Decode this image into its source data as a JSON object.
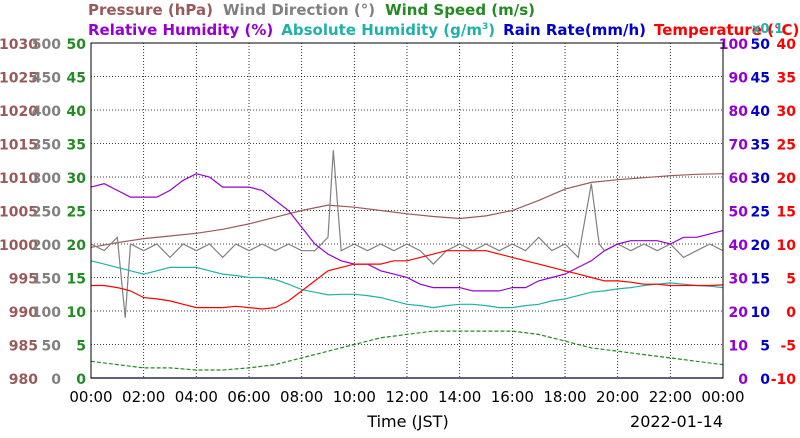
{
  "chart_data": {
    "type": "line",
    "date_label": "2022-01-14",
    "xlabel": "Time (JST)",
    "x_ticks": [
      "00:00",
      "02:00",
      "04:00",
      "06:00",
      "08:00",
      "10:00",
      "12:00",
      "14:00",
      "16:00",
      "18:00",
      "20:00",
      "22:00",
      "00:00"
    ],
    "legend_row1": [
      {
        "text": "Pressure (hPa)",
        "color": "#9a5a5a"
      },
      {
        "text": "Wind Direction (°)",
        "color": "#808080"
      },
      {
        "text": "Wind Speed (m/s)",
        "color": "#228b22"
      }
    ],
    "legend_row2": [
      {
        "text": "Relative Humidity (%)",
        "color": "#9400d3"
      },
      {
        "text": "Absolute Humidity (g/m",
        "sup": "3",
        "close": ")",
        "color": "#20b2aa"
      },
      {
        "text": "Rain Rate(mm/h)",
        "color": "#0000cd"
      },
      {
        "text": "Temperature (°C)",
        "color": "#ff0000"
      }
    ],
    "rain_scale_note": "x0.1",
    "axes": {
      "pressure": {
        "label_color": "#9a5a5a",
        "ticks": [
          "1030",
          "1025",
          "1020",
          "1015",
          "1010",
          "1005",
          "1000",
          "995",
          "990",
          "985",
          "980"
        ],
        "range": [
          980,
          1030
        ]
      },
      "wind_direction": {
        "label_color": "#808080",
        "ticks": [
          "500",
          "450",
          "400",
          "350",
          "300",
          "250",
          "200",
          "150",
          "100",
          "50",
          "0"
        ],
        "range": [
          0,
          500
        ]
      },
      "wind_speed": {
        "label_color": "#228b22",
        "ticks": [
          "50",
          "45",
          "40",
          "35",
          "30",
          "25",
          "20",
          "15",
          "10",
          "5",
          "0"
        ],
        "range": [
          0,
          50
        ]
      },
      "relative_humidity": {
        "label_color": "#9400d3",
        "ticks": [
          "100",
          "90",
          "80",
          "70",
          "60",
          "50",
          "40",
          "30",
          "20",
          "10",
          "0"
        ],
        "range": [
          0,
          100
        ]
      },
      "rain_rate": {
        "label_color": "#0000cd",
        "ticks": [
          "50",
          "45",
          "40",
          "35",
          "30",
          "25",
          "20",
          "15",
          "10",
          "5",
          "0"
        ],
        "range": [
          0,
          50
        ]
      },
      "temperature": {
        "label_color": "#ff0000",
        "ticks": [
          "40",
          "35",
          "30",
          "25",
          "20",
          "15",
          "10",
          "5",
          "0",
          "-5",
          "-10"
        ],
        "range": [
          -10,
          40
        ]
      }
    },
    "series": [
      {
        "name": "Pressure",
        "unit": "hPa",
        "color": "#9a5a5a",
        "axis": "pressure",
        "x": [
          0,
          1,
          2,
          3,
          4,
          5,
          6,
          7,
          8,
          9,
          10,
          11,
          12,
          13,
          14,
          15,
          16,
          17,
          18,
          19,
          20,
          21,
          22,
          23,
          24
        ],
        "y": [
          999.5,
          1000.2,
          1000.8,
          1001.2,
          1001.6,
          1002.2,
          1003,
          1004,
          1005,
          1005.8,
          1005.5,
          1005,
          1004.5,
          1004.1,
          1003.8,
          1004.2,
          1005,
          1006.5,
          1008.2,
          1009.2,
          1009.6,
          1009.9,
          1010.2,
          1010.4,
          1010.5
        ]
      },
      {
        "name": "Wind Direction",
        "unit": "°",
        "color": "#808080",
        "axis": "wind_direction",
        "x": [
          0,
          0.5,
          1,
          1.3,
          1.5,
          2,
          2.5,
          3,
          3.5,
          4,
          4.5,
          5,
          5.5,
          6,
          6.5,
          7,
          7.5,
          8,
          8.5,
          9,
          9.2,
          9.5,
          10,
          10.5,
          11,
          11.5,
          12,
          12.5,
          13,
          13.5,
          14,
          14.5,
          15,
          15.5,
          16,
          16.5,
          17,
          17.5,
          18,
          18.5,
          19,
          19.3,
          19.5,
          20,
          20.5,
          21,
          21.5,
          22,
          22.5,
          23,
          23.5,
          24
        ],
        "y": [
          200,
          190,
          210,
          90,
          200,
          190,
          200,
          180,
          200,
          190,
          200,
          180,
          200,
          190,
          200,
          190,
          200,
          190,
          190,
          210,
          340,
          190,
          200,
          190,
          200,
          190,
          200,
          190,
          170,
          190,
          200,
          190,
          200,
          190,
          200,
          190,
          210,
          190,
          200,
          180,
          290,
          200,
          190,
          200,
          190,
          200,
          190,
          200,
          180,
          190,
          200,
          190
        ]
      },
      {
        "name": "Wind Speed",
        "unit": "m/s",
        "color": "#228b22",
        "axis": "wind_speed",
        "x": [
          0,
          1,
          2,
          3,
          4,
          5,
          6,
          7,
          8,
          9,
          10,
          11,
          12,
          13,
          14,
          15,
          16,
          17,
          18,
          19,
          20,
          21,
          22,
          23,
          24
        ],
        "y": [
          2.5,
          2,
          1.5,
          1.5,
          1.2,
          1.2,
          1.5,
          2,
          3,
          4,
          5,
          6,
          6.5,
          7,
          7,
          7,
          7,
          6.5,
          5.5,
          4.5,
          4,
          3.5,
          3,
          2.5,
          2
        ]
      },
      {
        "name": "Relative Humidity",
        "unit": "%",
        "color": "#9400d3",
        "axis": "relative_humidity",
        "x": [
          0,
          0.5,
          1,
          1.5,
          2,
          2.5,
          3,
          3.5,
          4,
          4.5,
          5,
          5.5,
          6,
          6.5,
          7,
          7.5,
          8,
          8.5,
          9,
          9.5,
          10,
          10.5,
          11,
          11.5,
          12,
          12.5,
          13,
          13.5,
          14,
          14.5,
          15,
          15.5,
          16,
          16.5,
          17,
          17.5,
          18,
          18.5,
          19,
          19.5,
          20,
          20.5,
          21,
          21.5,
          22,
          22.5,
          23,
          23.5,
          24
        ],
        "y": [
          57,
          58,
          56,
          54,
          54,
          54,
          56,
          59,
          61,
          60,
          57,
          57,
          57,
          56,
          53,
          50,
          45,
          40,
          37,
          35,
          34,
          34,
          32,
          31,
          30,
          28,
          27,
          27,
          27,
          26,
          26,
          26,
          27,
          27,
          29,
          30,
          31,
          33,
          35,
          38,
          40,
          41,
          41,
          41,
          40,
          42,
          42,
          43,
          44
        ]
      },
      {
        "name": "Absolute Humidity",
        "unit": "g/m3",
        "color": "#20b2aa",
        "axis": "rain_rate",
        "x": [
          0,
          0.5,
          1,
          1.5,
          2,
          2.5,
          3,
          3.5,
          4,
          4.5,
          5,
          5.5,
          6,
          6.5,
          7,
          7.5,
          8,
          8.5,
          9,
          9.5,
          10,
          10.5,
          11,
          11.5,
          12,
          12.5,
          13,
          13.5,
          14,
          14.5,
          15,
          15.5,
          16,
          16.5,
          17,
          17.5,
          18,
          18.5,
          19,
          19.5,
          20,
          20.5,
          21,
          21.5,
          22,
          22.5,
          23,
          23.5,
          24
        ],
        "y": [
          17.5,
          17,
          16.5,
          16,
          15.5,
          16,
          16.5,
          16.5,
          16.5,
          16,
          15.5,
          15.3,
          15,
          15,
          14.7,
          14,
          13.2,
          12.8,
          12.4,
          12.5,
          12.5,
          12.3,
          12,
          11.5,
          11,
          10.8,
          10.5,
          10.8,
          11,
          11,
          10.8,
          10.5,
          10.5,
          10.8,
          11,
          11.5,
          11.8,
          12.3,
          12.8,
          13,
          13.3,
          13.5,
          13.8,
          14,
          14.2,
          14,
          13.8,
          13.7,
          13.5
        ]
      },
      {
        "name": "Rain Rate",
        "unit": "mm/h",
        "color": "#0000cd",
        "axis": "rain_rate",
        "x": [
          0,
          24
        ],
        "y": [
          0,
          0
        ]
      },
      {
        "name": "Temperature",
        "unit": "°C",
        "color": "#ff0000",
        "axis": "temperature",
        "x": [
          0,
          0.5,
          1,
          1.5,
          2,
          2.5,
          3,
          3.5,
          4,
          4.5,
          5,
          5.5,
          6,
          6.5,
          7,
          7.5,
          8,
          8.5,
          9,
          9.5,
          10,
          10.5,
          11,
          11.5,
          12,
          12.5,
          13,
          13.5,
          14,
          14.5,
          15,
          15.5,
          16,
          16.5,
          17,
          17.5,
          18,
          18.5,
          19,
          19.5,
          20,
          20.5,
          21,
          21.5,
          22,
          22.5,
          23,
          23.5,
          24
        ],
        "y": [
          3.8,
          3.8,
          3.5,
          3,
          2,
          1.8,
          1.5,
          1,
          0.5,
          0.5,
          0.5,
          0.7,
          0.5,
          0.3,
          0.5,
          1.5,
          3,
          4.5,
          6,
          6.5,
          7,
          7,
          7,
          7.5,
          7.5,
          8,
          8.5,
          9,
          9,
          9,
          9,
          8.5,
          8,
          7.5,
          7,
          6.5,
          6,
          5.5,
          5,
          4.5,
          4.5,
          4.3,
          4,
          4,
          3.8,
          3.8,
          3.8,
          3.8,
          3.9
        ]
      }
    ]
  }
}
